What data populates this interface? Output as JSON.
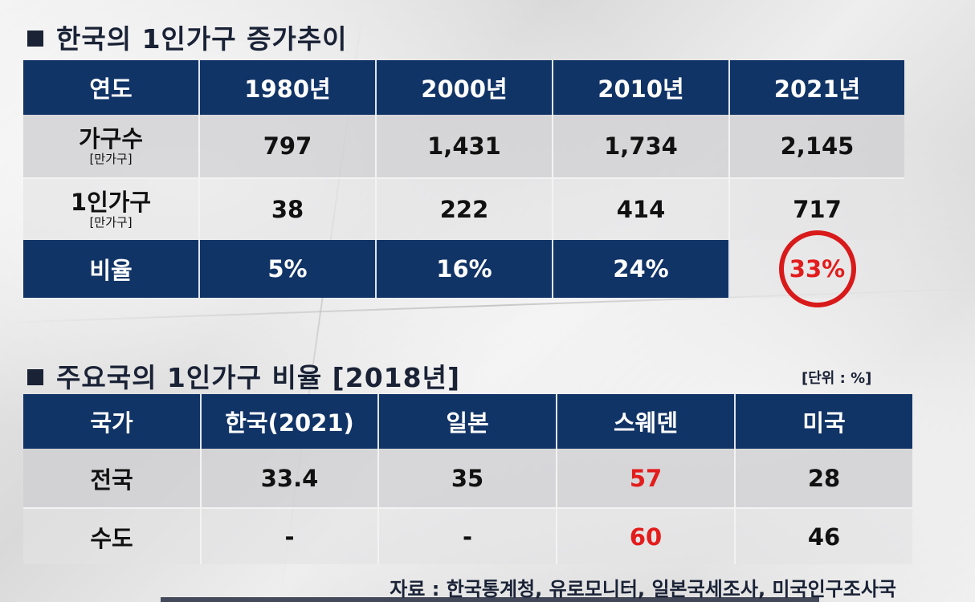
{
  "section1": {
    "title": "한국의 1인가구 증가추이",
    "header": [
      "연도",
      "1980년",
      "2000년",
      "2010년",
      "2021년"
    ],
    "households": {
      "label": "가구수",
      "sublabel": "[만가구]",
      "values": [
        "797",
        "1,431",
        "1,734",
        "2,145"
      ]
    },
    "single": {
      "label": "1인가구",
      "sublabel": "[만가구]",
      "values": [
        "38",
        "222",
        "414",
        "717"
      ]
    },
    "ratio": {
      "label": "비율",
      "values": [
        "5%",
        "16%",
        "24%",
        "33%"
      ]
    }
  },
  "section2": {
    "title": "주요국의 1인가구 비율 [2018년]",
    "unit": "[단위 : %]",
    "header": [
      "국가",
      "한국(2021)",
      "일본",
      "스웨덴",
      "미국"
    ],
    "national": {
      "label": "전국",
      "values": [
        "33.4",
        "35",
        "57",
        "28"
      ]
    },
    "capital": {
      "label": "수도",
      "values": [
        "-",
        "-",
        "60",
        "46"
      ]
    }
  },
  "source": "자료 : 한국통계청, 유로모니터, 일본국세조사, 미국인구조사국",
  "colors": {
    "header_bg": "#113467",
    "highlight": "#e31c1c"
  }
}
